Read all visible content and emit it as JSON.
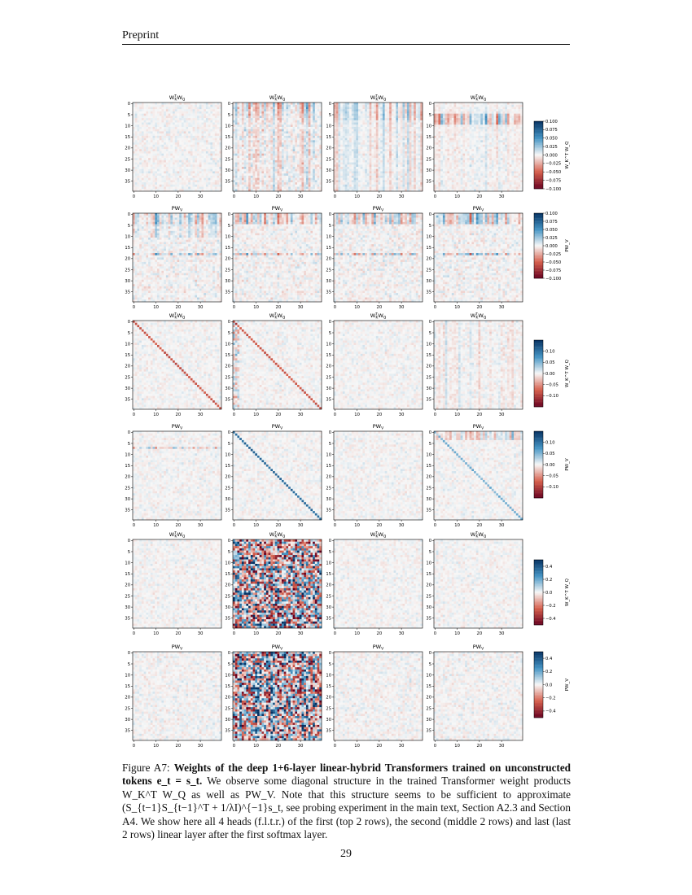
{
  "header": {
    "title": "Preprint"
  },
  "figure": {
    "panel_title_qk_base": "W",
    "panel_title_qk_sup": "T",
    "panel_title_qk_sub1": "K",
    "panel_title_qk_mid": "W",
    "panel_title_qk_sub2": "Q",
    "panel_title_pv_base": "PW",
    "panel_title_pv_sub": "V",
    "colorbar_label_qk": "W_K^T W_Q",
    "colorbar_label_pv": "PW_V",
    "colormap": {
      "negative": "#67001f",
      "zero": "#f7f7f7",
      "positive": "#053061"
    },
    "y_ticks": [
      "0",
      "5",
      "10",
      "15",
      "20",
      "25",
      "30",
      "35"
    ],
    "x_ticks": [
      "0",
      "10",
      "20",
      "30"
    ],
    "rows": [
      {
        "id": "layer1-qk",
        "kind": "qk",
        "colorbar_ticks": [
          "0.100",
          "0.075",
          "0.050",
          "0.025",
          "0.000",
          "−0.025",
          "−0.050",
          "−0.075",
          "−0.100"
        ],
        "colorbar_range": [
          -0.1,
          0.1
        ]
      },
      {
        "id": "layer1-pv",
        "kind": "pv",
        "colorbar_ticks": [
          "0.100",
          "0.075",
          "0.050",
          "0.025",
          "0.000",
          "−0.025",
          "−0.050",
          "−0.075",
          "−0.100"
        ],
        "colorbar_range": [
          -0.1,
          0.1
        ]
      },
      {
        "id": "layer2-qk",
        "kind": "qk",
        "colorbar_ticks": [
          "0.10",
          "0.05",
          "0.00",
          "−0.05",
          "−0.10"
        ],
        "colorbar_range": [
          -0.15,
          0.15
        ]
      },
      {
        "id": "layer2-pv",
        "kind": "pv",
        "colorbar_ticks": [
          "0.10",
          "0.05",
          "0.00",
          "−0.05",
          "−0.10"
        ],
        "colorbar_range": [
          -0.15,
          0.15
        ]
      },
      {
        "id": "last-qk",
        "kind": "qk",
        "colorbar_ticks": [
          "0.4",
          "0.2",
          "0.0",
          "−0.2",
          "−0.4"
        ],
        "colorbar_range": [
          -0.5,
          0.5
        ]
      },
      {
        "id": "last-pv",
        "kind": "pv",
        "colorbar_ticks": [
          "0.4",
          "0.2",
          "0.0",
          "−0.2",
          "−0.4"
        ],
        "colorbar_range": [
          -0.5,
          0.5
        ]
      }
    ]
  },
  "caption": {
    "label": "Figure A7:",
    "bold": "Weights of the deep 1+6-layer linear-hybrid Transformers trained on unconstructed tokens e_t = s_t.",
    "text": "We observe some diagonal structure in the trained Transformer weight products W_K^T W_Q as well as PW_V. Note that this structure seems to be sufficient to approximate (S_{t−1}S_{t−1}^T + 1/λI)^{−1}s_t, see probing experiment in the main text, Section A2.3 and Section A4. We show here all 4 heads (f.l.t.r.) of the first (top 2 rows), the second (middle 2 rows) and last (last 2 rows) linear layer after the first softmax layer."
  },
  "page_number": "29"
}
